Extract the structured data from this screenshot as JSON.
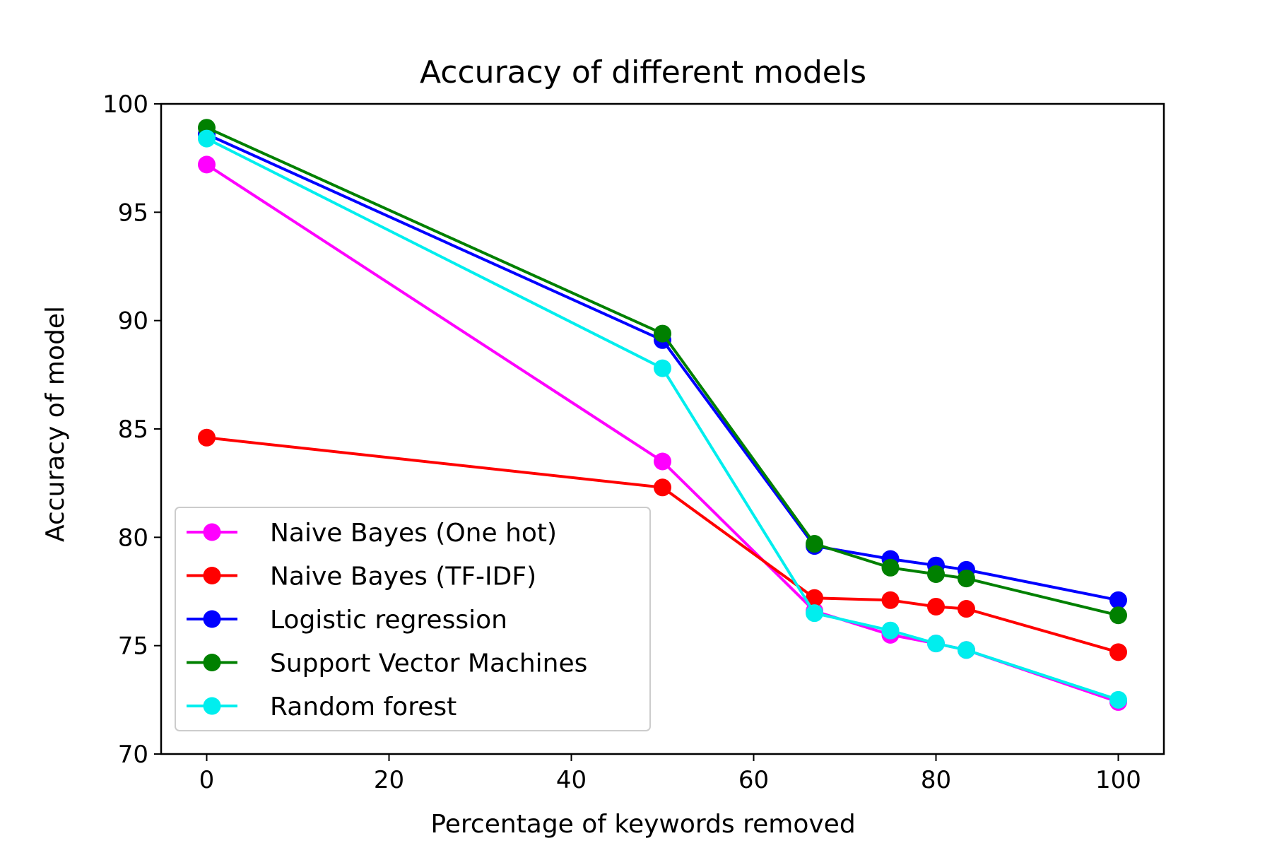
{
  "chart_data": {
    "type": "line",
    "title": "Accuracy of different models",
    "xlabel": "Percentage of keywords removed",
    "ylabel": "Accuracy of model",
    "x": [
      0,
      50,
      66.67,
      75,
      80,
      83.33,
      100
    ],
    "xlim": [
      -5,
      105
    ],
    "ylim": [
      70,
      100
    ],
    "xticks": [
      0,
      20,
      40,
      60,
      80,
      100
    ],
    "yticks": [
      70,
      75,
      80,
      85,
      90,
      95,
      100
    ],
    "grid": false,
    "legend_position": "lower-left",
    "series": [
      {
        "name": "Naive Bayes (One hot)",
        "color": "#ff00ff",
        "values": [
          97.2,
          83.5,
          76.6,
          75.5,
          75.1,
          74.8,
          72.4
        ]
      },
      {
        "name": "Naive Bayes (TF-IDF)",
        "color": "#ff0000",
        "values": [
          84.6,
          82.3,
          77.2,
          77.1,
          76.8,
          76.7,
          74.7
        ]
      },
      {
        "name": "Logistic regression",
        "color": "#0000ff",
        "values": [
          98.6,
          89.1,
          79.6,
          79.0,
          78.7,
          78.5,
          77.1
        ]
      },
      {
        "name": "Support Vector Machines",
        "color": "#008000",
        "values": [
          98.9,
          89.4,
          79.7,
          78.6,
          78.3,
          78.1,
          76.4
        ]
      },
      {
        "name": "Random forest",
        "color": "#00eeee",
        "values": [
          98.4,
          87.8,
          76.5,
          75.7,
          75.1,
          74.8,
          72.5
        ]
      }
    ]
  }
}
